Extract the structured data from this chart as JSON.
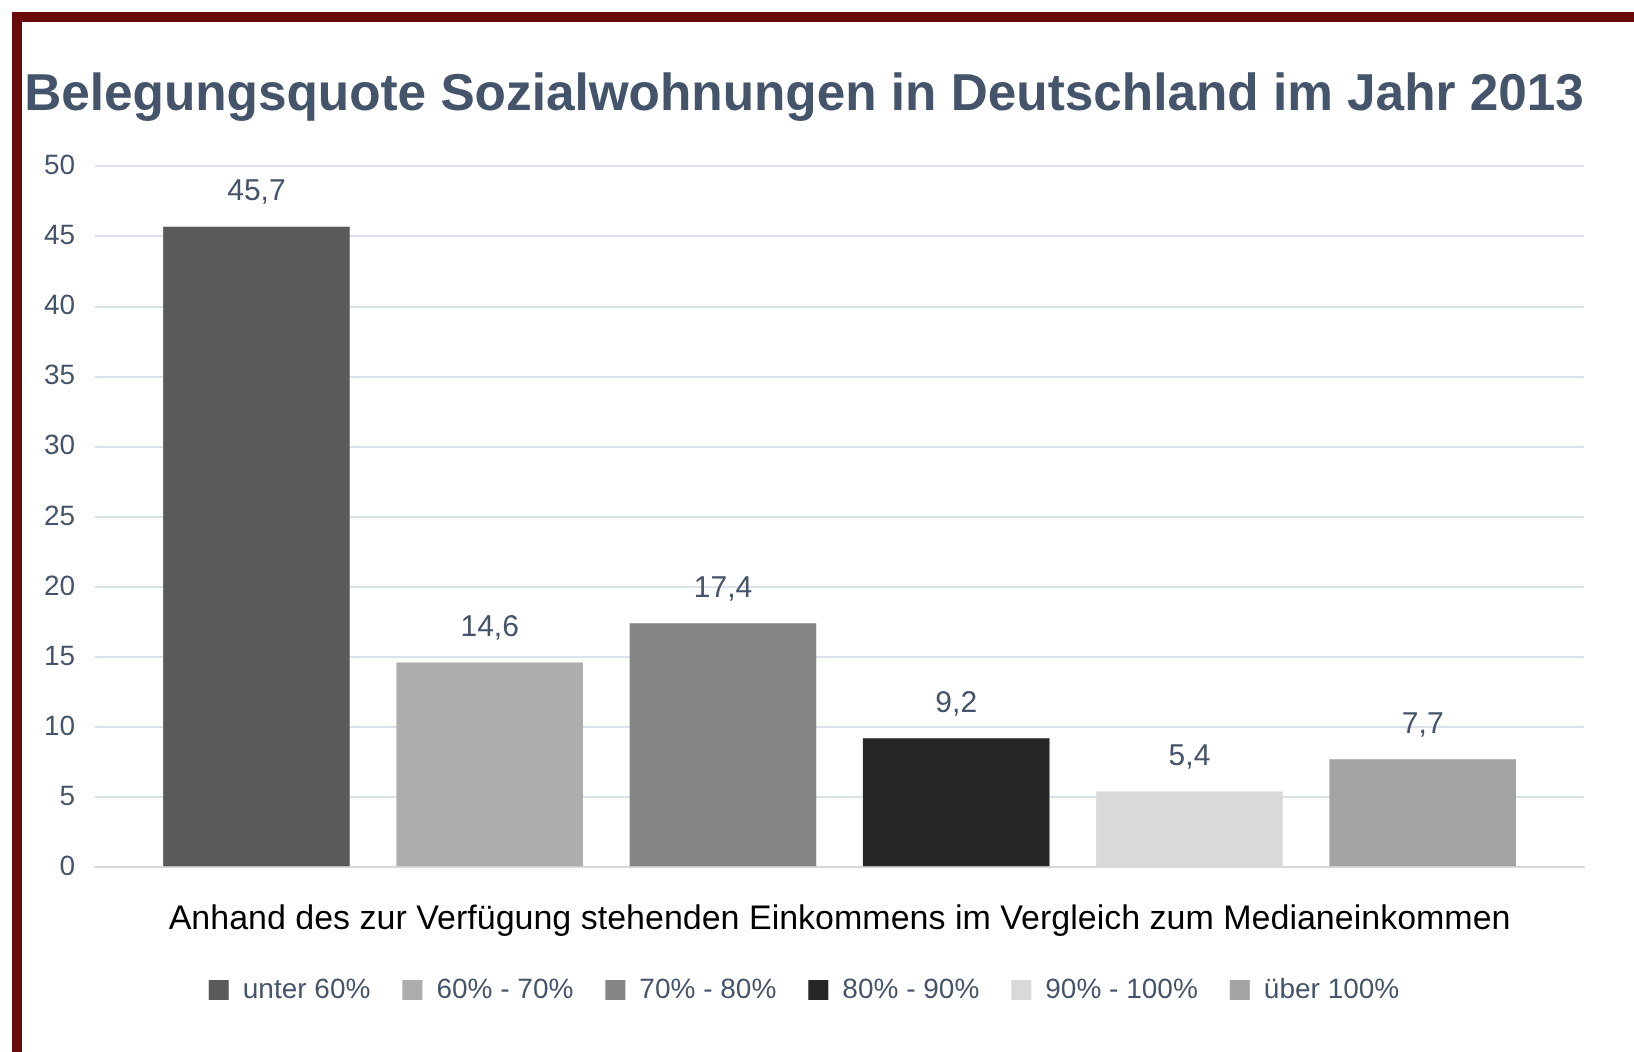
{
  "chart_data": {
    "type": "bar",
    "title": "Belegungsquote Sozialwohnungen in Deutschland im Jahr 2013",
    "xlabel": "Anhand des zur Verfügung stehenden Einkommens im Vergleich zum Medianeinkommen",
    "categories": [
      null
    ],
    "series": [
      {
        "name": "unter 60%",
        "color": "#5a5a5a",
        "values": [
          45.7
        ],
        "value_labels": [
          "45,7"
        ]
      },
      {
        "name": "60% - 70%",
        "color": "#adadad",
        "values": [
          14.6
        ],
        "value_labels": [
          "14,6"
        ]
      },
      {
        "name": "70% - 80%",
        "color": "#858585",
        "values": [
          17.4
        ],
        "value_labels": [
          "17,4"
        ]
      },
      {
        "name": "80% - 90%",
        "color": "#262626",
        "values": [
          9.2
        ],
        "value_labels": [
          "9,2"
        ]
      },
      {
        "name": "90% - 100%",
        "color": "#d9d9d9",
        "values": [
          5.4
        ],
        "value_labels": [
          "5,4"
        ]
      },
      {
        "name": "über 100%",
        "color": "#a3a3a3",
        "values": [
          7.7
        ],
        "value_labels": [
          "7,7"
        ]
      }
    ],
    "ylim": [
      0,
      50
    ],
    "yticks": [
      0,
      5,
      10,
      15,
      20,
      25,
      30,
      35,
      40,
      45,
      50
    ],
    "grid": "y",
    "legend": "bottom"
  }
}
